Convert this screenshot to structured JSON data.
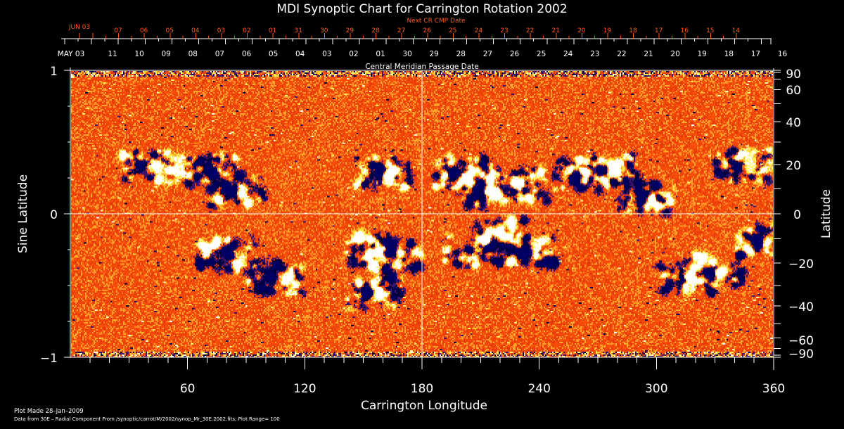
{
  "chart_data": {
    "type": "heatmap",
    "title": "MDI Synoptic Chart for Carrington Rotation 2002",
    "xlabel": "Carrington Longitude",
    "ylabel_left": "Sine Latitude",
    "ylabel_right": "Latitude",
    "xlim": [
      0,
      360
    ],
    "ylim_sine": [
      -1,
      1
    ],
    "x_ticks": [
      60,
      120,
      180,
      240,
      300,
      360
    ],
    "x_minor_step": 10,
    "left_ticks": [
      {
        "value": 1,
        "label": "1"
      },
      {
        "value": 0,
        "label": "0"
      },
      {
        "value": -1,
        "label": "−1"
      }
    ],
    "left_minor_step": 0.25,
    "right_ticks": [
      {
        "value": 90,
        "label": "90"
      },
      {
        "value": 60,
        "label": "60"
      },
      {
        "value": 40,
        "label": "40"
      },
      {
        "value": 20,
        "label": "20"
      },
      {
        "value": 0,
        "label": "0"
      },
      {
        "value": -20,
        "label": "−20"
      },
      {
        "value": -40,
        "label": "−40"
      },
      {
        "value": -60,
        "label": "−60"
      },
      {
        "value": -90,
        "label": "−90"
      }
    ],
    "right_minor": [
      80,
      70,
      50,
      30,
      10,
      -10,
      -30,
      -50,
      -70,
      -80
    ],
    "top_axis": {
      "label": "Central Meridian Passage Date",
      "start_label": "MAY 03",
      "labels": [
        "11",
        "10",
        "09",
        "08",
        "07",
        "06",
        "05",
        "04",
        "03",
        "02",
        "01",
        "30",
        "29",
        "28",
        "27",
        "26",
        "25",
        "24",
        "23",
        "22",
        "21",
        "20",
        "19",
        "18",
        "17",
        "16"
      ]
    },
    "next_cr_axis": {
      "label": "Next CR CMP Date",
      "start_label": "JUN 03",
      "labels": [
        "07",
        "06",
        "05",
        "04",
        "03",
        "02",
        "01",
        "31",
        "30",
        "29",
        "28",
        "27",
        "26",
        "25",
        "24",
        "23",
        "22",
        "21",
        "20",
        "19",
        "18",
        "17",
        "16",
        "15",
        "14"
      ]
    },
    "color_scale": {
      "negative": "#000050",
      "background": "#ff4a10",
      "positive": "#ffffff"
    },
    "plot_range": 100,
    "active_regions": [
      {
        "lon": 40,
        "lat": 20,
        "polarity": "bipolar"
      },
      {
        "lon": 70,
        "lat": 18,
        "polarity": "negative"
      },
      {
        "lon": 85,
        "lat": 10,
        "polarity": "bipolar"
      },
      {
        "lon": 160,
        "lat": 17,
        "polarity": "bipolar"
      },
      {
        "lon": 200,
        "lat": 17,
        "polarity": "bipolar"
      },
      {
        "lon": 212,
        "lat": 10,
        "polarity": "bipolar"
      },
      {
        "lon": 230,
        "lat": 12,
        "polarity": "positive"
      },
      {
        "lon": 262,
        "lat": 16,
        "polarity": "bipolar"
      },
      {
        "lon": 275,
        "lat": 18,
        "polarity": "bipolar"
      },
      {
        "lon": 295,
        "lat": 7,
        "polarity": "bipolar"
      },
      {
        "lon": 345,
        "lat": 20,
        "polarity": "bipolar"
      },
      {
        "lon": 155,
        "lat": -14,
        "polarity": "bipolar"
      },
      {
        "lon": 165,
        "lat": -17,
        "polarity": "bipolar"
      },
      {
        "lon": 80,
        "lat": -16,
        "polarity": "negative"
      },
      {
        "lon": 105,
        "lat": -26,
        "polarity": "bipolar"
      },
      {
        "lon": 155,
        "lat": -33,
        "polarity": "bipolar"
      },
      {
        "lon": 235,
        "lat": -15,
        "polarity": "bipolar"
      },
      {
        "lon": 220,
        "lat": -8,
        "polarity": "positive"
      },
      {
        "lon": 315,
        "lat": -26,
        "polarity": "bipolar"
      },
      {
        "lon": 330,
        "lat": -23,
        "polarity": "bipolar"
      },
      {
        "lon": 355,
        "lat": -10,
        "polarity": "bipolar"
      },
      {
        "lon": 205,
        "lat": -15,
        "polarity": "negative"
      }
    ]
  },
  "footer": {
    "plot_made": "Plot Made 28–Jan–2009",
    "data_source": "Data from 30E – Radial Component From /synoptic/carrot/M/2002/synop_Mr_30E.2002.fits; Plot Range=  100"
  }
}
